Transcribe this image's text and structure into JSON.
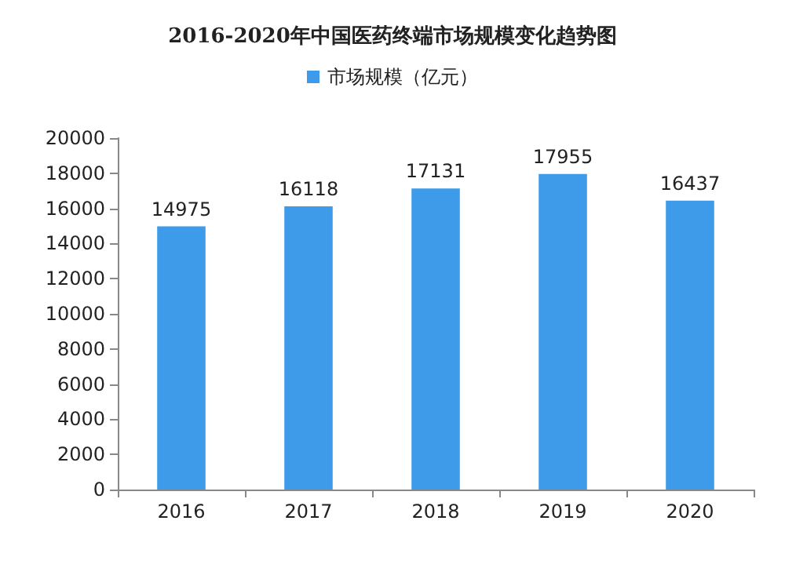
{
  "chart_data": {
    "type": "bar",
    "title": "2016-2020年中国医药终端市场规模变化趋势图",
    "categories": [
      "2016",
      "2017",
      "2018",
      "2019",
      "2020"
    ],
    "series": [
      {
        "name": "市场规模（亿元）",
        "color": "#3d9be9",
        "values": [
          14975,
          16118,
          17131,
          17955,
          16437
        ]
      }
    ],
    "ylim": [
      0,
      20000
    ],
    "yticks": [
      0,
      2000,
      4000,
      6000,
      8000,
      10000,
      12000,
      14000,
      16000,
      18000,
      20000
    ],
    "grid": false,
    "legend": "top",
    "data_labels": true
  }
}
